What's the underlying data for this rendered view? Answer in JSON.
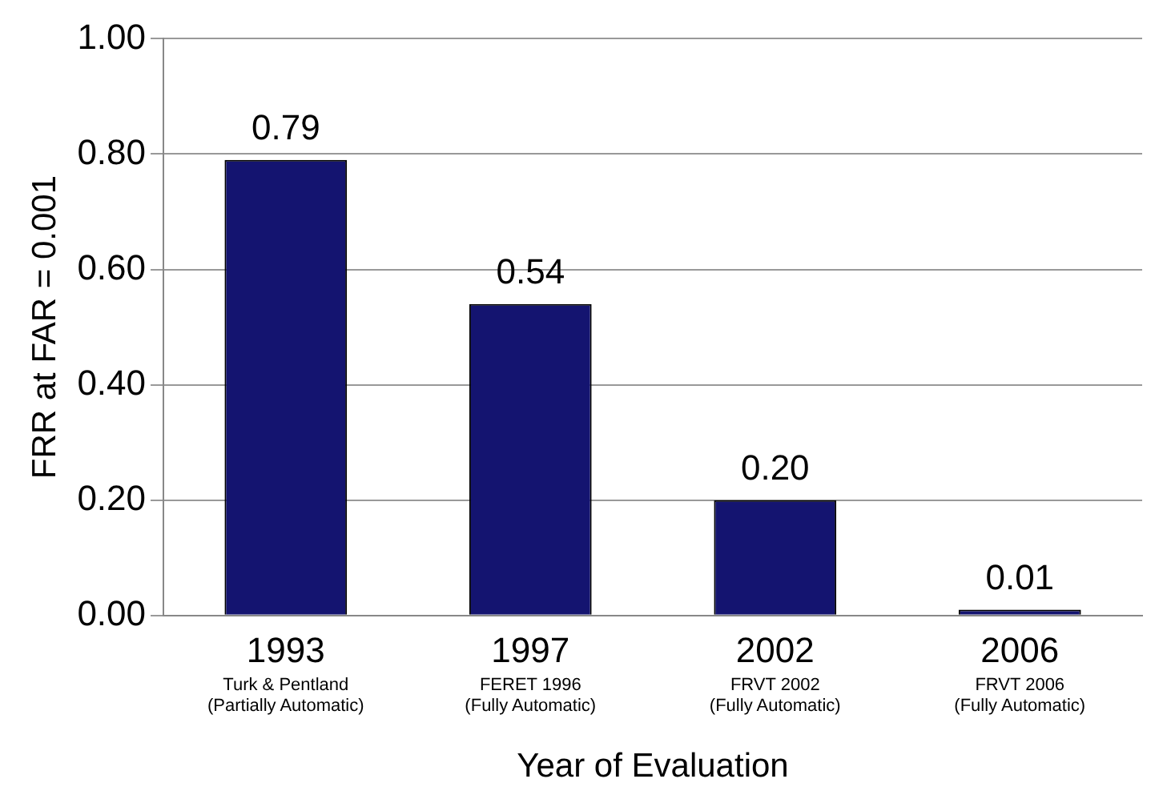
{
  "chart_data": {
    "type": "bar",
    "xlabel": "Year of Evaluation",
    "ylabel": "FRR at FAR = 0.001",
    "categories": [
      "1993\nTurk & Pentland\n(Partially Automatic)",
      "1997\nFERET 1996\n(Fully Automatic)",
      "2002\nFRVT 2002\n(Fully Automatic)",
      "2006\nFRVT 2006\n(Fully Automatic)"
    ],
    "values": [
      0.79,
      0.54,
      0.2,
      0.01
    ],
    "value_labels": [
      "0.79",
      "0.54",
      "0.20",
      "0.01"
    ],
    "color": "#141470",
    "ylim": [
      0,
      1
    ],
    "yticks": [
      {
        "value": 0,
        "label": "0.00"
      },
      {
        "value": 0.2,
        "label": "0.20"
      },
      {
        "value": 0.4,
        "label": "0.40"
      },
      {
        "value": 0.6,
        "label": "0.60"
      },
      {
        "value": 0.8,
        "label": "0.80"
      },
      {
        "value": 1,
        "label": "1.00"
      }
    ],
    "grid": "y",
    "legend": false
  }
}
